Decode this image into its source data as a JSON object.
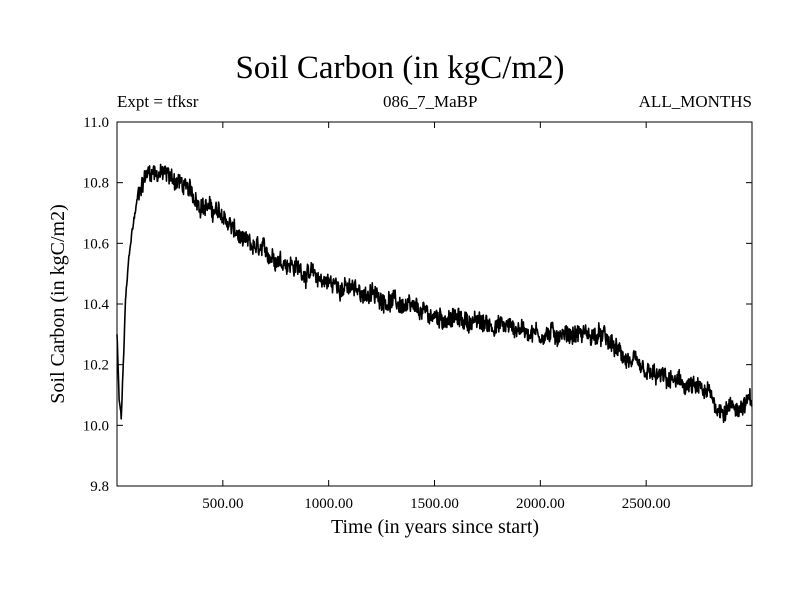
{
  "chart_data": {
    "type": "line",
    "title": "Soil Carbon (in kgC/m2)",
    "subtitle": "086_7_MaBP",
    "left_label": "Expt = tfksr",
    "right_label": "ALL_MONTHS",
    "xlabel": "Time (in years since start)",
    "ylabel": "Soil Carbon (in kgC/m2)",
    "xlim": [
      0,
      3000
    ],
    "ylim": [
      9.8,
      11.0
    ],
    "x_ticks": [
      500,
      1000,
      1500,
      2000,
      2500
    ],
    "x_tick_labels": [
      "500.00",
      "1000.00",
      "1500.00",
      "2000.00",
      "2500.00"
    ],
    "y_ticks": [
      9.8,
      10.0,
      10.2,
      10.4,
      10.6,
      10.8,
      11.0
    ],
    "y_tick_labels": [
      "9.8",
      "10.0",
      "10.2",
      "10.4",
      "10.6",
      "10.8",
      "11.0"
    ],
    "series": [
      {
        "name": "Soil Carbon",
        "color": "#000000",
        "x": [
          0,
          10,
          20,
          30,
          40,
          60,
          80,
          100,
          120,
          140,
          160,
          200,
          250,
          300,
          400,
          500,
          600,
          700,
          800,
          900,
          1000,
          1100,
          1200,
          1300,
          1400,
          1500,
          1600,
          1700,
          1800,
          1900,
          2000,
          2100,
          2200,
          2300,
          2400,
          2500,
          2600,
          2700,
          2800,
          2850,
          2900,
          2950,
          3000
        ],
        "y": [
          10.3,
          10.08,
          10.02,
          10.2,
          10.4,
          10.58,
          10.68,
          10.76,
          10.8,
          10.83,
          10.84,
          10.83,
          10.82,
          10.8,
          10.73,
          10.69,
          10.6,
          10.57,
          10.54,
          10.5,
          10.47,
          10.45,
          10.43,
          10.41,
          10.38,
          10.36,
          10.35,
          10.34,
          10.33,
          10.32,
          10.3,
          10.3,
          10.3,
          10.29,
          10.22,
          10.17,
          10.15,
          10.13,
          10.1,
          10.05,
          10.06,
          10.06,
          10.08
        ]
      }
    ]
  }
}
